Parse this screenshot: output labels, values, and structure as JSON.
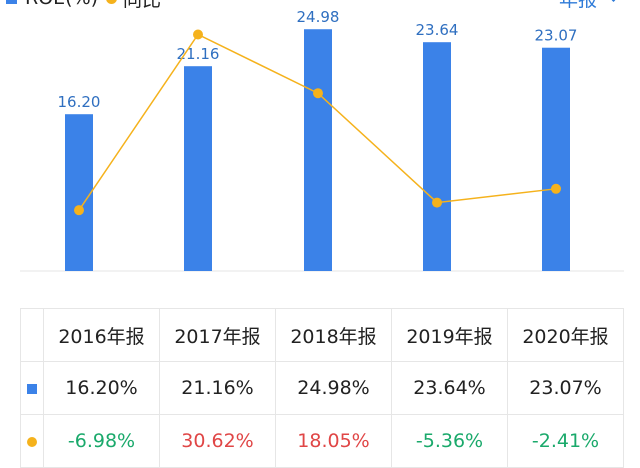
{
  "colors": {
    "bar": "#3b82e8",
    "line": "#f5b21c",
    "positive": "#e04646",
    "negative": "#1aa96b",
    "period": "#2f7bd8"
  },
  "legend": {
    "roe_label": "ROE(%)",
    "yoy_label": "同比"
  },
  "period_selector": {
    "label": "年报"
  },
  "chart_data": {
    "type": "bar",
    "categories": [
      "2016年报",
      "2017年报",
      "2018年报",
      "2019年报",
      "2020年报"
    ],
    "series": [
      {
        "name": "ROE(%)",
        "type": "bar",
        "values": [
          16.2,
          21.16,
          24.98,
          23.64,
          23.07
        ]
      },
      {
        "name": "同比",
        "type": "line",
        "values": [
          -6.98,
          30.62,
          18.05,
          -5.36,
          -2.41
        ]
      }
    ],
    "bar_labels": [
      "16.20",
      "21.16",
      "24.98",
      "23.64",
      "23.07"
    ],
    "ylim_bar": [
      0,
      28
    ],
    "ylim_line": [
      -20,
      38
    ],
    "grid": false
  },
  "table": {
    "headers": [
      "2016年报",
      "2017年报",
      "2018年报",
      "2019年报",
      "2020年报"
    ],
    "roe_row": [
      "16.20%",
      "21.16%",
      "24.98%",
      "23.64%",
      "23.07%"
    ],
    "yoy_row": [
      "-6.98%",
      "30.62%",
      "18.05%",
      "-5.36%",
      "-2.41%"
    ]
  }
}
